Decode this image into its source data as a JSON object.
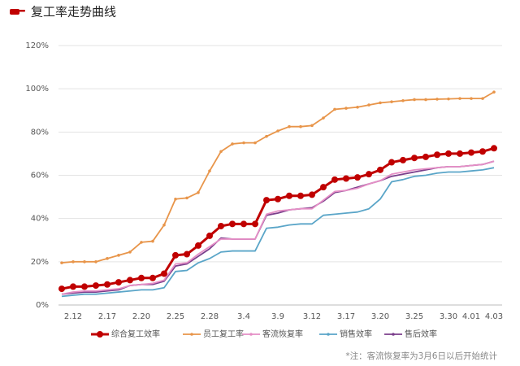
{
  "chart_data": {
    "type": "line",
    "title": "复工率走势曲线",
    "note": "*注：客流恢复率为3月6日以后开始统计",
    "categories": [
      null,
      "2.12",
      null,
      null,
      "2.17",
      null,
      null,
      "2.20",
      null,
      null,
      "2.25",
      null,
      null,
      "2.28",
      null,
      null,
      "3.4",
      null,
      null,
      "3.9",
      null,
      null,
      "3.12",
      null,
      null,
      "3.17",
      null,
      null,
      "3.20",
      null,
      null,
      "3.25",
      null,
      null,
      "3.30",
      null,
      "4.01",
      null,
      "4.03"
    ],
    "series": [
      {
        "name": "综合复工效率",
        "color": "#c00000",
        "values": [
          7.5,
          8.5,
          8.5,
          9,
          9.5,
          10.5,
          11.5,
          12.5,
          12.5,
          14.5,
          23,
          23.5,
          27.5,
          32,
          36.5,
          37.5,
          37.5,
          37.5,
          48.5,
          49,
          50.5,
          50.5,
          51,
          54.5,
          58,
          58.5,
          59,
          60.5,
          62.5,
          66,
          67,
          68,
          68.5,
          69.5,
          70,
          70,
          70.5,
          71,
          72.5
        ]
      },
      {
        "name": "员工复工率",
        "color": "#e8954a",
        "values": [
          19.5,
          20,
          20,
          20,
          21.5,
          23,
          24.5,
          29,
          29.5,
          37,
          49,
          49.5,
          52,
          62,
          71,
          74.5,
          75,
          75,
          78,
          80.5,
          82.5,
          82.5,
          83,
          86.5,
          90.5,
          91,
          91.5,
          92.5,
          93.5,
          94,
          94.5,
          95,
          95,
          95.2,
          95.3,
          95.5,
          95.5,
          95.5,
          98.5
        ]
      },
      {
        "name": "客流恢复率",
        "color": "#e58fc6",
        "values": [
          5,
          6,
          6.5,
          6.5,
          7,
          7.5,
          9,
          9.5,
          10,
          11.5,
          19,
          19.5,
          23.5,
          27,
          30.5,
          30.5,
          30.5,
          30.5,
          42,
          43.5,
          44,
          44.5,
          44.5,
          48.5,
          52.5,
          53,
          54,
          56,
          57.5,
          60.5,
          61.5,
          62.5,
          63,
          63.5,
          64,
          64,
          64.5,
          65,
          66.5
        ]
      },
      {
        "name": "销售效率",
        "color": "#5aa5c8",
        "values": [
          4,
          4.5,
          5,
          5,
          5.5,
          6,
          6.5,
          7,
          7,
          8,
          15.5,
          16,
          19.5,
          21.5,
          24.5,
          25,
          25,
          25,
          35.5,
          36,
          37,
          37.5,
          37.5,
          41.5,
          42,
          42.5,
          43,
          44.5,
          49,
          57,
          58,
          59.5,
          60,
          61,
          61.5,
          61.5,
          62,
          62.5,
          63.5
        ]
      },
      {
        "name": "售后效率",
        "color": "#7b3f8c",
        "values": [
          5,
          5.5,
          6,
          6,
          6.5,
          7,
          9,
          9.5,
          9.5,
          11,
          18,
          19,
          22.5,
          26,
          31,
          30.5,
          30.5,
          30.5,
          41.5,
          42.5,
          44,
          44.5,
          45,
          48,
          52,
          53,
          54.5,
          56,
          57.5,
          59.5,
          60.5,
          61.5,
          62.5,
          63.5,
          64,
          64,
          64.5,
          65,
          66.5
        ]
      }
    ],
    "ylim": [
      0,
      120
    ],
    "yticks": [
      {
        "value": 0,
        "label": "0%"
      },
      {
        "value": 20,
        "label": "20%"
      },
      {
        "value": 40,
        "label": "40%"
      },
      {
        "value": 60,
        "label": "60%"
      },
      {
        "value": 80,
        "label": "80%"
      },
      {
        "value": 100,
        "label": "100%"
      },
      {
        "value": 120,
        "label": "120%"
      }
    ],
    "grid": true
  }
}
